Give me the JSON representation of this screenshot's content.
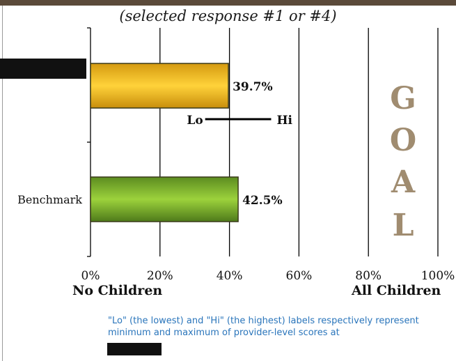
{
  "subtitle": "(selected response #1 or #4)",
  "x_label_left": "No Children",
  "x_label_right": "All Children",
  "footnote": "\"Lo\" (the lowest) and \"Hi\" (the highest) labels respectively represent minimum and maximum of provider-level scores at",
  "chart_data": {
    "type": "bar",
    "orientation": "horizontal",
    "categories": [
      "",
      "Benchmark"
    ],
    "values": [
      39.7,
      42.5
    ],
    "value_labels": [
      "39.7%",
      "42.5%"
    ],
    "bar_colors": [
      "#f0b820",
      "#7cb230"
    ],
    "xlim": [
      0,
      100
    ],
    "x_ticks": [
      0,
      20,
      40,
      60,
      80,
      100
    ],
    "x_tick_labels": [
      "0%",
      "20%",
      "40%",
      "60%",
      "80%",
      "100%"
    ],
    "grid": "vertical",
    "range_marker": {
      "lo_label": "Lo",
      "hi_label": "Hi",
      "lo_value": 33,
      "hi_value": 52
    },
    "goal_letters": [
      "G",
      "O",
      "A",
      "L"
    ],
    "goal_color": "#a08c70"
  }
}
